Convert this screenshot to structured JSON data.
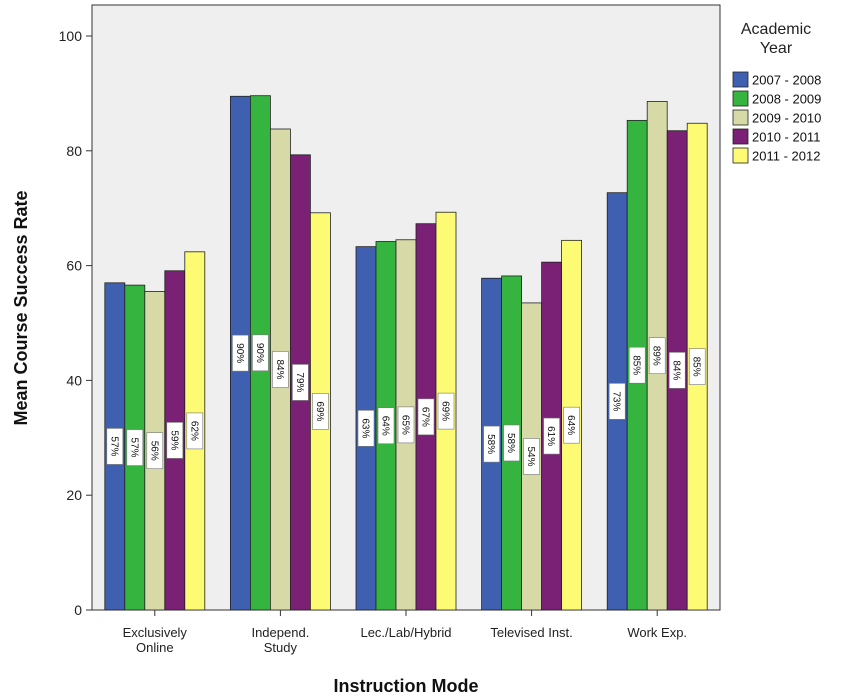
{
  "chart_data": {
    "type": "bar",
    "title": "",
    "xlabel": "Instruction Mode",
    "ylabel": "Mean Course Success Rate",
    "ylim": [
      0,
      100
    ],
    "yticks": [
      0,
      20,
      40,
      60,
      80,
      100
    ],
    "grid": false,
    "legend_title": "Academic Year",
    "legend_position": "right",
    "categories": [
      "Exclusively Online",
      "Independ. Study",
      "Lec./Lab/Hybrid",
      "Televised Inst.",
      "Work Exp."
    ],
    "category_lines": [
      [
        "Exclusively",
        "Online"
      ],
      [
        "Independ.",
        "Study"
      ],
      [
        "Lec./Lab/Hybrid"
      ],
      [
        "Televised Inst."
      ],
      [
        "Work Exp."
      ]
    ],
    "series": [
      {
        "name": "2007 - 2008",
        "color": "#3f5fb0",
        "values": [
          57,
          89.5,
          63.3,
          57.8,
          72.7
        ],
        "labels": [
          "57%",
          "90%",
          "63%",
          "58%",
          "73%"
        ]
      },
      {
        "name": "2008 - 2009",
        "color": "#35b53f",
        "values": [
          56.6,
          89.6,
          64.2,
          58.2,
          85.3
        ],
        "labels": [
          "57%",
          "90%",
          "64%",
          "58%",
          "85%"
        ]
      },
      {
        "name": "2009 - 2010",
        "color": "#d7d9a7",
        "values": [
          55.5,
          83.8,
          64.5,
          53.5,
          88.6
        ],
        "labels": [
          "56%",
          "84%",
          "65%",
          "54%",
          "89%"
        ]
      },
      {
        "name": "2010 - 2011",
        "color": "#7a2075",
        "values": [
          59.1,
          79.3,
          67.3,
          60.6,
          83.5
        ],
        "labels": [
          "59%",
          "79%",
          "67%",
          "61%",
          "84%"
        ]
      },
      {
        "name": "2011 - 2012",
        "color": "#fdfb73",
        "values": [
          62.4,
          69.2,
          69.3,
          64.4,
          84.8
        ],
        "labels": [
          "62%",
          "69%",
          "69%",
          "64%",
          "85%"
        ]
      }
    ]
  }
}
